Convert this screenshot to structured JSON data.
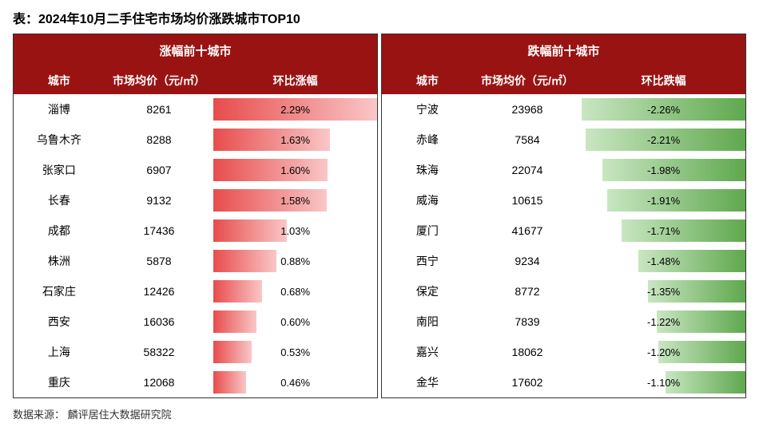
{
  "title": "表：2024年10月二手住宅市场均价涨跌城市TOP10",
  "source_label": "数据来源：",
  "source_value": "麟评居住大数据研究院",
  "header_bg": "#9a1313",
  "rise": {
    "panel_title": "涨幅前十城市",
    "col_city": "城市",
    "col_price": "市场均价（元/㎡）",
    "col_change": "环比涨幅",
    "bar_gradient_start": "#e84c4c",
    "bar_gradient_end": "#f9c7c7",
    "max_abs": 2.29,
    "rows": [
      {
        "city": "淄博",
        "price": "8261",
        "change": "2.29%",
        "value": 2.29
      },
      {
        "city": "乌鲁木齐",
        "price": "8288",
        "change": "1.63%",
        "value": 1.63
      },
      {
        "city": "张家口",
        "price": "6907",
        "change": "1.60%",
        "value": 1.6
      },
      {
        "city": "长春",
        "price": "9132",
        "change": "1.58%",
        "value": 1.58
      },
      {
        "city": "成都",
        "price": "17436",
        "change": "1.03%",
        "value": 1.03
      },
      {
        "city": "株洲",
        "price": "5878",
        "change": "0.88%",
        "value": 0.88
      },
      {
        "city": "石家庄",
        "price": "12426",
        "change": "0.68%",
        "value": 0.68
      },
      {
        "city": "西安",
        "price": "16036",
        "change": "0.60%",
        "value": 0.6
      },
      {
        "city": "上海",
        "price": "58322",
        "change": "0.53%",
        "value": 0.53
      },
      {
        "city": "重庆",
        "price": "12068",
        "change": "0.46%",
        "value": 0.46
      }
    ]
  },
  "fall": {
    "panel_title": "跌幅前十城市",
    "col_city": "城市",
    "col_price": "市场均价（元/㎡）",
    "col_change": "环比跌幅",
    "bar_gradient_start": "#5fa84e",
    "bar_gradient_end": "#c9e6c2",
    "max_abs": 2.26,
    "rows": [
      {
        "city": "宁波",
        "price": "23968",
        "change": "-2.26%",
        "value": 2.26
      },
      {
        "city": "赤峰",
        "price": "7584",
        "change": "-2.21%",
        "value": 2.21
      },
      {
        "city": "珠海",
        "price": "22074",
        "change": "-1.98%",
        "value": 1.98
      },
      {
        "city": "威海",
        "price": "10615",
        "change": "-1.91%",
        "value": 1.91
      },
      {
        "city": "厦门",
        "price": "41677",
        "change": "-1.71%",
        "value": 1.71
      },
      {
        "city": "西宁",
        "price": "9234",
        "change": "-1.48%",
        "value": 1.48
      },
      {
        "city": "保定",
        "price": "8772",
        "change": "-1.35%",
        "value": 1.35
      },
      {
        "city": "南阳",
        "price": "7839",
        "change": "-1.22%",
        "value": 1.22
      },
      {
        "city": "嘉兴",
        "price": "18062",
        "change": "-1.20%",
        "value": 1.2
      },
      {
        "city": "金华",
        "price": "17602",
        "change": "-1.10%",
        "value": 1.1
      }
    ]
  }
}
